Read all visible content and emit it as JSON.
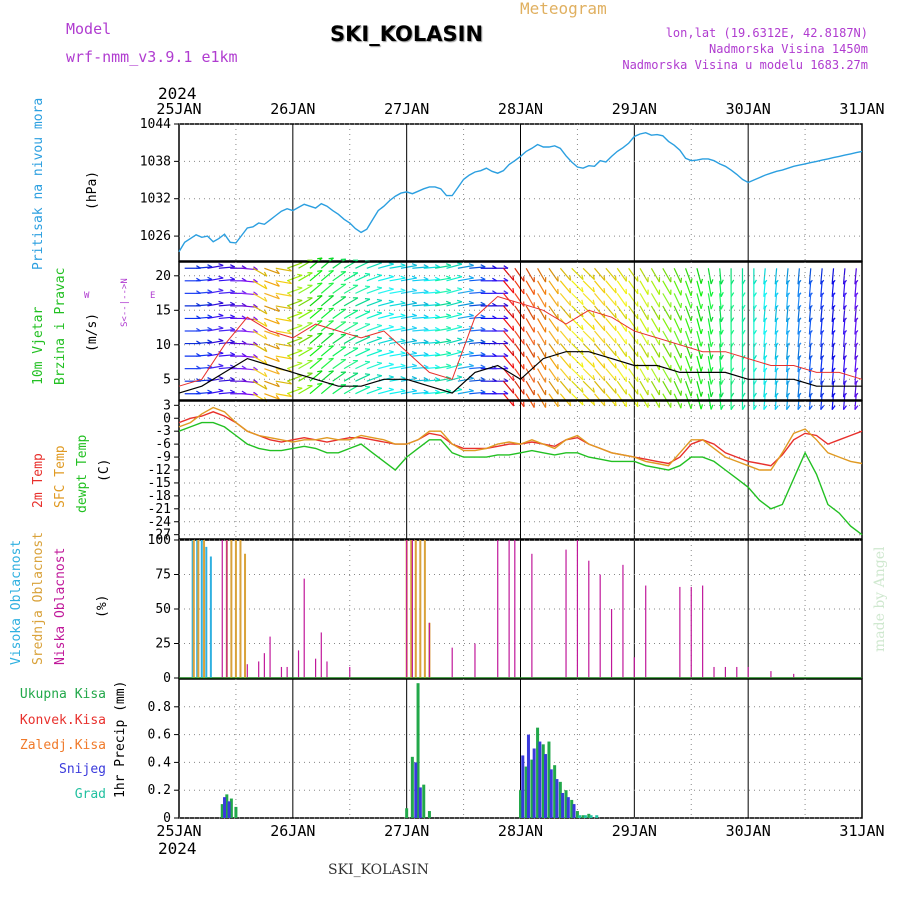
{
  "header": {
    "model_label": "Model",
    "model_name": "wrf-nmm_v3.9.1 e1km",
    "station": "SKI_KOLASIN",
    "meteogram": "Meteogram",
    "lonlat": "lon,lat (19.6312E, 42.8187N)",
    "elevation": "Nadmorska Visina 1450m",
    "model_elevation": "Nadmorska Visina u modelu 1683.27m",
    "year": "2024",
    "footer_station": "SKI_KOLASIN",
    "credit": "made by Angel"
  },
  "colors": {
    "pressure": "#2b9fe0",
    "temp2m": "#e8302c",
    "sfc": "#e09a22",
    "dewpt": "#22c022",
    "high_cloud": "#2fb0e0",
    "mid_cloud": "#d9a23a",
    "low_cloud": "#c0189a",
    "total_precip": "#22a84a",
    "conv_precip": "#e8302c",
    "frozen_precip": "#f07a2a",
    "snow": "#3a3adc",
    "graupel": "#22c0a0"
  },
  "chart_data": [
    {
      "type": "line",
      "panel": "pressure",
      "x": [
        0,
        0.05,
        0.1,
        0.15,
        0.2,
        0.25,
        0.3,
        0.35,
        0.4,
        0.45,
        0.5,
        0.55,
        0.6,
        0.65,
        0.7,
        0.75,
        0.8,
        0.85,
        0.9,
        0.95,
        1,
        1.05,
        1.1,
        1.15,
        1.2,
        1.25,
        1.3,
        1.35,
        1.4,
        1.45,
        1.5,
        1.55,
        1.6,
        1.65,
        1.7,
        1.75,
        1.8,
        1.85,
        1.9,
        1.95,
        2,
        2.05,
        2.1,
        2.15,
        2.2,
        2.25,
        2.3,
        2.35,
        2.4,
        2.45,
        2.5,
        2.55,
        2.6,
        2.65,
        2.7,
        2.75,
        2.8,
        2.85,
        2.9,
        2.95,
        3,
        3.05,
        3.1,
        3.15,
        3.2,
        3.25,
        3.3,
        3.35,
        3.4,
        3.45,
        3.5,
        3.55,
        3.6,
        3.65,
        3.7,
        3.75,
        3.8,
        3.85,
        3.9,
        3.95,
        4,
        4.05,
        4.1,
        4.15,
        4.2,
        4.25,
        4.3,
        4.35,
        4.4,
        4.45,
        4.5,
        4.55,
        4.6,
        4.65,
        4.7,
        4.75,
        4.8,
        4.85,
        4.9,
        4.95,
        5,
        5.05,
        5.1,
        5.15,
        5.2,
        5.25,
        5.3,
        5.35,
        5.4,
        5.45,
        5.5,
        5.55,
        5.6,
        5.65,
        5.7,
        5.75,
        5.8,
        5.85,
        5.9,
        5.95,
        6
      ],
      "x_ticks": [
        "25JAN",
        "26JAN",
        "27JAN",
        "28JAN",
        "29JAN",
        "30JAN",
        "31JAN"
      ],
      "values": [
        1023.5,
        1025,
        1025.6,
        1026.2,
        1025.8,
        1026,
        1025.1,
        1025.6,
        1026.3,
        1025,
        1024.9,
        1026.1,
        1027.3,
        1027.5,
        1028.1,
        1027.9,
        1028.6,
        1029.3,
        1030,
        1030.4,
        1030.1,
        1030.6,
        1031.1,
        1030.8,
        1030.5,
        1031.2,
        1030.8,
        1030.1,
        1029.5,
        1028.7,
        1028.1,
        1027.2,
        1026.6,
        1027.1,
        1028.6,
        1030.1,
        1030.8,
        1031.7,
        1032.4,
        1032.9,
        1033.1,
        1032.8,
        1033.2,
        1033.6,
        1033.9,
        1033.9,
        1033.6,
        1032.5,
        1032.5,
        1033.8,
        1035.1,
        1035.8,
        1036.3,
        1036.5,
        1036.9,
        1036.4,
        1036.1,
        1036.5,
        1037.5,
        1038.1,
        1038.8,
        1039.6,
        1040.1,
        1040.7,
        1040.3,
        1040.3,
        1040.5,
        1040.1,
        1038.9,
        1037.9,
        1037.1,
        1036.9,
        1037.3,
        1037.2,
        1038.1,
        1037.9,
        1038.8,
        1039.6,
        1040.2,
        1040.9,
        1042,
        1042.4,
        1042.6,
        1042.2,
        1042.3,
        1042.1,
        1041.2,
        1040.6,
        1039.8,
        1038.5,
        1038.1,
        1038.2,
        1038.4,
        1038.4,
        1038.1,
        1037.6,
        1037.2,
        1036.6,
        1035.9,
        1035.1,
        1034.6,
        1035,
        1035.4,
        1035.8,
        1036.1,
        1036.4,
        1036.6,
        1036.9,
        1037.2,
        1037.4,
        1037.6,
        1037.8,
        1038,
        1038.2,
        1038.4,
        1038.6,
        1038.8,
        1039,
        1039.2,
        1039.4,
        1039.6
      ],
      "xlabel": "",
      "ylabel": "(hPa)",
      "y_title": "Pritisak na nivou mora",
      "y_ticks": [
        1026,
        1032,
        1038,
        1044
      ],
      "ylim": [
        1022,
        1044
      ],
      "xlim": [
        0,
        6
      ],
      "grid": true
    },
    {
      "type": "line",
      "panel": "wind",
      "x": [
        0,
        0.2,
        0.4,
        0.6,
        0.8,
        1,
        1.2,
        1.4,
        1.6,
        1.8,
        2,
        2.2,
        2.4,
        2.6,
        2.8,
        3,
        3.2,
        3.4,
        3.6,
        3.8,
        4,
        4.2,
        4.4,
        4.6,
        4.8,
        5,
        5.2,
        5.4,
        5.6,
        5.8,
        6
      ],
      "series": [
        {
          "values": [
            3,
            4,
            6,
            8,
            7,
            6,
            5,
            4,
            4,
            5,
            5,
            4,
            3,
            6,
            7,
            5,
            8,
            9,
            9,
            8,
            7,
            7,
            6,
            6,
            6,
            5,
            5,
            5,
            4,
            4,
            4
          ]
        },
        {
          "values": [
            4,
            5,
            10,
            14,
            12,
            11,
            13,
            12,
            11,
            12,
            9,
            6,
            5,
            14,
            17,
            16,
            15,
            13,
            15,
            14,
            12,
            11,
            10,
            9,
            9,
            8,
            7,
            7,
            6,
            6,
            5
          ]
        }
      ],
      "barbs": {
        "cols": 60,
        "rows": 11,
        "hue_by_column": [
          230,
          230,
          250,
          250,
          260,
          270,
          50,
          40,
          50,
          80,
          90,
          120,
          130,
          140,
          150,
          160,
          170,
          180,
          180,
          190,
          190,
          180,
          160,
          170,
          200,
          220,
          240,
          250,
          0,
          10,
          20,
          30,
          40,
          50,
          60,
          55,
          50,
          55,
          60,
          65,
          70,
          80,
          90,
          100,
          110,
          120,
          130,
          140,
          150,
          160,
          170,
          180,
          190,
          200,
          210,
          220,
          230,
          240,
          250,
          260
        ],
        "angle_by_column": [
          90,
          95,
          100,
          95,
          90,
          85,
          60,
          70,
          80,
          110,
          120,
          130,
          130,
          125,
          120,
          115,
          110,
          105,
          100,
          100,
          95,
          95,
          100,
          105,
          100,
          95,
          90,
          90,
          40,
          35,
          30,
          30,
          35,
          40,
          45,
          45,
          40,
          40,
          35,
          35,
          30,
          30,
          30,
          25,
          20,
          15,
          10,
          5,
          0,
          0,
          0,
          355,
          355,
          355,
          355,
          355,
          355,
          355,
          355,
          355
        ]
      },
      "ylabel": "(m/s)",
      "y_title": "10m Vjetar Brzina i Pravac",
      "y_ticks": [
        5,
        10,
        15,
        20
      ],
      "ylim": [
        2,
        22
      ],
      "xlim": [
        0,
        6
      ],
      "compass": [
        "N",
        "S",
        "W",
        "E"
      ],
      "compass_arrows": "<--|-->",
      "grid": true
    },
    {
      "type": "line",
      "panel": "temperature",
      "x": [
        0,
        0.1,
        0.2,
        0.3,
        0.4,
        0.5,
        0.6,
        0.7,
        0.8,
        0.9,
        1,
        1.1,
        1.2,
        1.3,
        1.4,
        1.5,
        1.6,
        1.7,
        1.8,
        1.9,
        2,
        2.1,
        2.2,
        2.3,
        2.4,
        2.5,
        2.6,
        2.7,
        2.8,
        2.9,
        3,
        3.1,
        3.2,
        3.3,
        3.4,
        3.5,
        3.6,
        3.7,
        3.8,
        3.9,
        4,
        4.1,
        4.2,
        4.3,
        4.4,
        4.5,
        4.6,
        4.7,
        4.8,
        4.9,
        5,
        5.1,
        5.2,
        5.3,
        5.4,
        5.5,
        5.6,
        5.7,
        5.8,
        5.9,
        6
      ],
      "series": [
        {
          "name": "2m Temp",
          "values": [
            -1,
            0,
            0.5,
            1.5,
            0.5,
            -1,
            -3,
            -4,
            -5,
            -5.5,
            -5,
            -4.5,
            -5,
            -5.5,
            -5,
            -4.5,
            -4.5,
            -5,
            -5.5,
            -6,
            -6,
            -5,
            -3.5,
            -4,
            -6,
            -7,
            -7,
            -7,
            -6.5,
            -6,
            -6,
            -5.5,
            -6,
            -6.5,
            -5,
            -4.5,
            -6,
            -7,
            -8,
            -8.5,
            -9,
            -9.5,
            -10,
            -10.5,
            -9,
            -6,
            -5,
            -6,
            -8,
            -9,
            -10,
            -10.5,
            -11,
            -8.5,
            -5,
            -3.5,
            -4,
            -6,
            -5,
            -4,
            -3
          ]
        },
        {
          "name": "SFC Temp",
          "values": [
            -2,
            -1,
            1,
            2.5,
            1.5,
            -1,
            -3,
            -4,
            -4.5,
            -5,
            -5.5,
            -5,
            -5,
            -4.5,
            -5,
            -5,
            -4,
            -4.5,
            -5,
            -6,
            -6,
            -5,
            -3,
            -3,
            -6,
            -7.5,
            -7.5,
            -7,
            -6,
            -5.5,
            -6,
            -5,
            -6,
            -7,
            -5,
            -4,
            -6,
            -7,
            -8,
            -8.5,
            -9,
            -10,
            -10.5,
            -11,
            -8,
            -5,
            -5,
            -7,
            -9,
            -10,
            -11,
            -12,
            -12,
            -8,
            -3.5,
            -2.5,
            -5,
            -8,
            -9,
            -10,
            -10.5
          ]
        },
        {
          "name": "dewpt Temp",
          "values": [
            -3,
            -2,
            -1,
            -1,
            -2,
            -4,
            -6,
            -7,
            -7.5,
            -7.5,
            -7,
            -6.5,
            -7,
            -8,
            -8,
            -7,
            -6,
            -8,
            -10,
            -12,
            -9,
            -7,
            -5,
            -5,
            -8,
            -9,
            -9,
            -9,
            -8.5,
            -8.5,
            -8,
            -7.5,
            -8,
            -8.5,
            -8,
            -8,
            -9,
            -9.5,
            -10,
            -10,
            -10,
            -11,
            -11.5,
            -12,
            -11,
            -9,
            -9,
            -10,
            -12,
            -14,
            -16,
            -19,
            -21,
            -20,
            -14,
            -8,
            -13,
            -20,
            -22,
            -25,
            -27
          ]
        }
      ],
      "ylabel": "(C)",
      "y_ticks": [
        3,
        0,
        -3,
        -6,
        -9,
        -12,
        -15,
        -18,
        -21,
        -24,
        -27
      ],
      "ylim": [
        -28,
        4
      ],
      "xlim": [
        0,
        6
      ],
      "grid": true
    },
    {
      "type": "bar",
      "panel": "cloud",
      "series": [
        {
          "name": "Visoka Oblacnost",
          "x": [
            0.12,
            0.16,
            0.2,
            0.24,
            0.28
          ],
          "values": [
            100,
            100,
            100,
            95,
            88
          ]
        },
        {
          "name": "Srednja Oblacnost",
          "x": [
            0.13,
            0.17,
            0.22,
            0.42,
            0.46,
            0.5,
            0.54,
            0.58,
            2.0,
            2.04,
            2.08,
            2.12,
            2.16,
            2.2
          ],
          "values": [
            100,
            100,
            100,
            100,
            100,
            100,
            100,
            90,
            100,
            100,
            100,
            100,
            100,
            40
          ]
        },
        {
          "name": "Niska Oblacnost",
          "x": [
            0.38,
            0.42,
            0.6,
            0.7,
            0.75,
            0.8,
            0.9,
            0.95,
            1.05,
            1.1,
            1.2,
            1.25,
            1.3,
            1.5,
            2.0,
            2.05,
            2.2,
            2.4,
            2.6,
            2.8,
            2.9,
            2.95,
            3.1,
            3.4,
            3.5,
            3.6,
            3.7,
            3.8,
            3.9,
            4.0,
            4.1,
            4.4,
            4.5,
            4.6,
            4.7,
            4.8,
            4.9,
            5.0,
            5.2,
            5.4
          ],
          "values": [
            100,
            100,
            10,
            12,
            18,
            30,
            8,
            8,
            20,
            72,
            14,
            33,
            12,
            8,
            100,
            100,
            40,
            22,
            25,
            100,
            100,
            100,
            90,
            93,
            100,
            85,
            75,
            50,
            82,
            15,
            67,
            66,
            66,
            67,
            8,
            8,
            8,
            8,
            5,
            3
          ]
        }
      ],
      "ylabel": "(%)",
      "y_ticks": [
        0,
        25,
        50,
        75,
        100
      ],
      "ylim": [
        0,
        100
      ],
      "xlim": [
        0,
        6
      ],
      "grid": true
    },
    {
      "type": "bar",
      "panel": "precip",
      "series": [
        {
          "name": "Ukupna Kisa",
          "x": [
            0.38,
            0.42,
            0.46,
            0.5,
            2.0,
            2.05,
            2.1,
            2.15,
            2.2,
            3.0,
            3.05,
            3.1,
            3.15,
            3.2,
            3.25,
            3.3,
            3.35,
            3.4,
            3.45,
            3.5,
            3.55,
            3.6
          ],
          "values": [
            0.1,
            0.17,
            0.14,
            0.08,
            0.07,
            0.44,
            0.97,
            0.24,
            0.05,
            0.2,
            0.37,
            0.42,
            0.65,
            0.53,
            0.55,
            0.38,
            0.26,
            0.2,
            0.13,
            0.05,
            0.02,
            0.03
          ]
        },
        {
          "name": "Snijeg",
          "x": [
            0.4,
            0.44,
            2.08,
            2.12,
            3.02,
            3.07,
            3.12,
            3.17,
            3.22,
            3.27,
            3.32,
            3.37,
            3.42,
            3.47
          ],
          "values": [
            0.15,
            0.12,
            0.4,
            0.22,
            0.45,
            0.6,
            0.5,
            0.55,
            0.46,
            0.35,
            0.28,
            0.18,
            0.15,
            0.1
          ]
        },
        {
          "name": "Grad",
          "x": [
            3.52,
            3.57,
            3.62,
            3.67
          ],
          "values": [
            0.02,
            0.02,
            0.02,
            0.02
          ]
        }
      ],
      "ylabel": "1hr Precip (mm)",
      "y_ticks": [
        0,
        0.2,
        0.4,
        0.6,
        0.8
      ],
      "ylim": [
        0,
        1
      ],
      "xlim": [
        0,
        6
      ],
      "grid": true
    }
  ],
  "panel_titles": {
    "pressure": [
      "Pritisak na nivou mora"
    ],
    "wind": [
      "10m Vjetar",
      "Brzina i Pravac"
    ],
    "temperature": [
      "2m Temp",
      "SFC Temp",
      "dewpt Temp"
    ],
    "cloud": [
      "Visoka Oblacnost",
      "Srednja Oblacnost",
      "Niska Oblacnost"
    ],
    "precip": [
      "Ukupna Kisa",
      "Konvek.Kisa",
      "Zaledj.Kisa",
      "Snijeg",
      "Grad"
    ]
  }
}
